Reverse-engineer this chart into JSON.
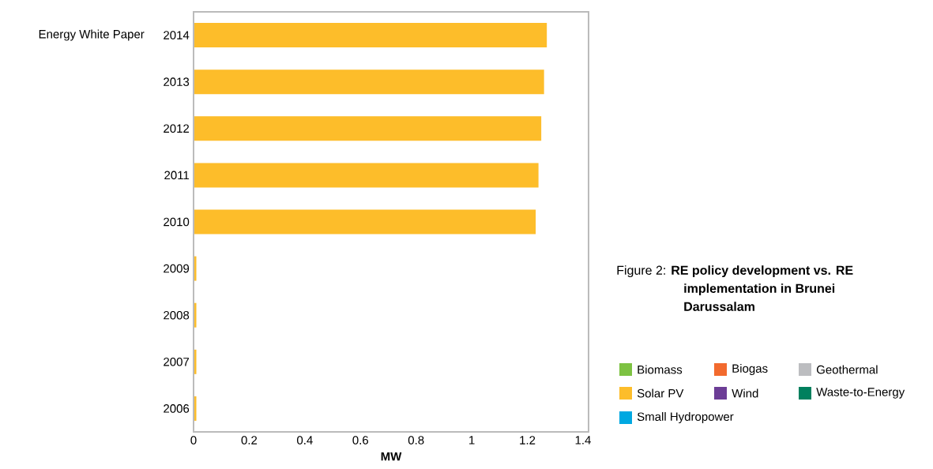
{
  "chart_data": {
    "type": "bar",
    "orientation": "horizontal",
    "stacked": true,
    "title": "Figure 2: **RE policy development vs. RE   implementation in Brunei Darussalam**",
    "xlabel": "**MW**",
    "categories": [
      "2014",
      "2013",
      "2012",
      "2011",
      "2010",
      "2009",
      "2008",
      "2007",
      "2006"
    ],
    "series": [
      {
        "name": "Biomass",
        "color": "#7dc242",
        "values": [
          null,
          null,
          null,
          null,
          null,
          null,
          null,
          null,
          null
        ]
      },
      {
        "name": "Biogas",
        "color": "#f26a2e",
        "values": [
          null,
          null,
          null,
          null,
          null,
          null,
          null,
          null,
          null
        ]
      },
      {
        "name": "Geothermal",
        "color": "#bcbdc0",
        "values": [
          null,
          null,
          null,
          null,
          null,
          null,
          null,
          null,
          null
        ]
      },
      {
        "name": "Solar PV",
        "color": "#fdbd2a",
        "values": [
          1.27,
          1.26,
          1.25,
          1.24,
          1.23,
          0.01,
          0.01,
          0.01,
          0.01
        ]
      },
      {
        "name": "Wind",
        "color": "#6c3d96",
        "values": [
          null,
          null,
          null,
          null,
          null,
          null,
          null,
          null,
          null
        ]
      },
      {
        "name": "Waste-to-Energy",
        "color": "#00805e",
        "values": [
          null,
          null,
          null,
          null,
          null,
          null,
          null,
          null,
          null
        ]
      },
      {
        "name": "Small Hydropower",
        "color": "#00a8e1",
        "values": [
          null,
          null,
          null,
          null,
          null,
          null,
          null,
          null,
          null
        ]
      }
    ],
    "xlim": [
      0,
      1.42
    ],
    "xticks": [
      0,
      0.2,
      0.4,
      0.6,
      0.8,
      1,
      1.2,
      1.4
    ],
    "grid": false,
    "legend": "right",
    "annotations": [
      "Energy White Paper"
    ]
  }
}
